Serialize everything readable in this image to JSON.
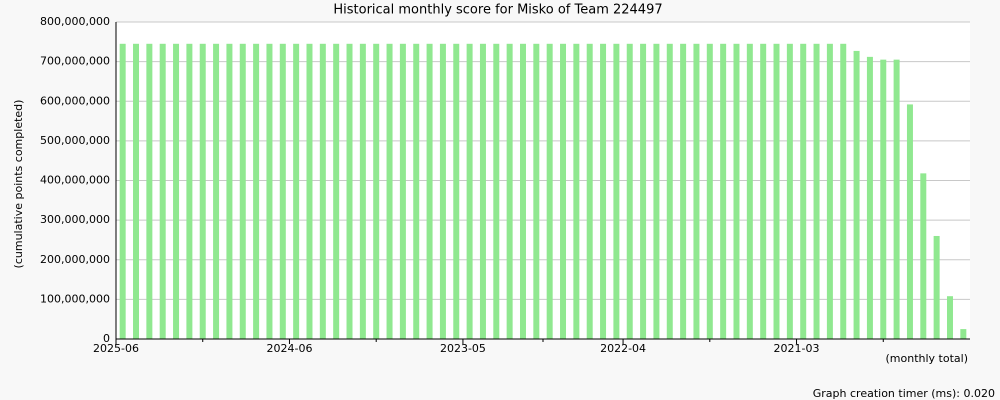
{
  "chart_data": {
    "type": "bar",
    "title": "Historical monthly score for Misko of Team 224497",
    "y_label": "(cumulative points completed)",
    "x_label": "(monthly total)",
    "footer": "Graph creation timer (ms): 0.020",
    "color": "#90e890",
    "grid": true,
    "categories": [
      "2025-06",
      null,
      null,
      null,
      null,
      null,
      null,
      null,
      null,
      null,
      null,
      null,
      null,
      "2024-06",
      null,
      null,
      null,
      null,
      null,
      null,
      null,
      null,
      null,
      null,
      null,
      null,
      "2023-05",
      null,
      null,
      null,
      null,
      null,
      null,
      null,
      null,
      null,
      null,
      null,
      "2022-04",
      null,
      null,
      null,
      null,
      null,
      null,
      null,
      null,
      null,
      null,
      null,
      null,
      "2021-03",
      null,
      null,
      null,
      null,
      null,
      null,
      null,
      null,
      null,
      null,
      null,
      null
    ],
    "values": [
      745000000,
      745000000,
      745000000,
      745000000,
      745000000,
      745000000,
      745000000,
      745000000,
      745000000,
      745000000,
      745000000,
      745000000,
      745000000,
      745000000,
      745000000,
      745000000,
      745000000,
      745000000,
      745000000,
      745000000,
      745000000,
      745000000,
      745000000,
      745000000,
      745000000,
      745000000,
      745000000,
      745000000,
      745000000,
      745000000,
      745000000,
      745000000,
      745000000,
      745000000,
      745000000,
      745000000,
      745000000,
      745000000,
      745000000,
      745000000,
      745000000,
      745000000,
      745000000,
      745000000,
      745000000,
      745000000,
      745000000,
      745000000,
      745000000,
      745000000,
      745000000,
      745000000,
      745000000,
      745000000,
      745000000,
      727000000,
      712000000,
      705000000,
      705000000,
      592000000,
      418000000,
      260000000,
      108000000,
      25000000
    ],
    "ylim": [
      0,
      800000000
    ],
    "yticks": [
      0,
      {
        "value": 100000000,
        "label": "100,000,000"
      },
      {
        "value": 200000000,
        "label": "200,000,000"
      },
      {
        "value": 300000000,
        "label": "300,000,000"
      },
      {
        "value": 400000000,
        "label": "400,000,000"
      },
      {
        "value": 500000000,
        "label": "500,000,000"
      },
      {
        "value": 600000000,
        "label": "600,000,000"
      },
      {
        "value": 700000000,
        "label": "700,000,000"
      },
      {
        "value": 800000000,
        "label": "800,000,000"
      }
    ]
  }
}
